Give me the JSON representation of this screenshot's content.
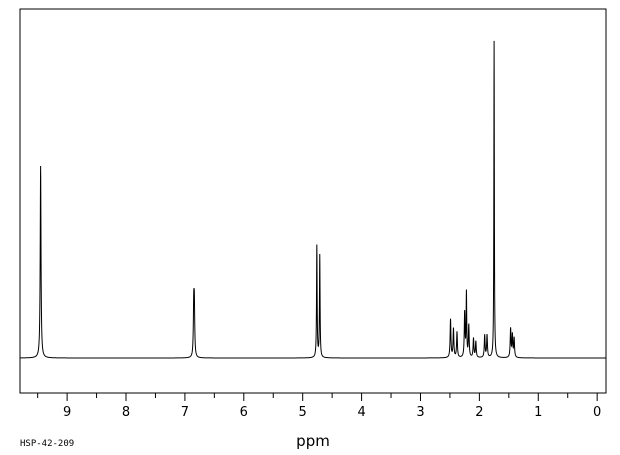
{
  "chart_data": {
    "type": "line",
    "xlabel": "ppm",
    "xlim": [
      9.8,
      -0.15
    ],
    "ylim": [
      0,
      100
    ],
    "x_reversed": true,
    "grid": false,
    "x_ticks": [
      9,
      8,
      7,
      6,
      5,
      4,
      3,
      2,
      1,
      0
    ],
    "x_tick_labels": [
      "9",
      "8",
      "7",
      "6",
      "5",
      "4",
      "3",
      "2",
      "1",
      "0"
    ],
    "baseline": 0,
    "peaks": [
      {
        "ppm": 9.45,
        "height": 60,
        "width": 0.008
      },
      {
        "ppm": 6.85,
        "height": 15,
        "width": 0.008
      },
      {
        "ppm": 6.84,
        "height": 15,
        "width": 0.008
      },
      {
        "ppm": 4.76,
        "height": 35,
        "width": 0.006
      },
      {
        "ppm": 4.71,
        "height": 32,
        "width": 0.006
      },
      {
        "ppm": 2.49,
        "height": 12,
        "width": 0.008
      },
      {
        "ppm": 2.44,
        "height": 9,
        "width": 0.008
      },
      {
        "ppm": 2.38,
        "height": 8,
        "width": 0.008
      },
      {
        "ppm": 2.25,
        "height": 14,
        "width": 0.008
      },
      {
        "ppm": 2.22,
        "height": 20,
        "width": 0.006
      },
      {
        "ppm": 2.18,
        "height": 10,
        "width": 0.008
      },
      {
        "ppm": 2.1,
        "height": 6,
        "width": 0.008
      },
      {
        "ppm": 2.06,
        "height": 5,
        "width": 0.008
      },
      {
        "ppm": 1.91,
        "height": 7,
        "width": 0.008
      },
      {
        "ppm": 1.87,
        "height": 7,
        "width": 0.008
      },
      {
        "ppm": 1.75,
        "height": 99,
        "width": 0.005
      },
      {
        "ppm": 1.47,
        "height": 9,
        "width": 0.008
      },
      {
        "ppm": 1.44,
        "height": 7,
        "width": 0.008
      },
      {
        "ppm": 1.41,
        "height": 6,
        "width": 0.008
      }
    ]
  },
  "figure_code": "HSP-42-209",
  "colors": {
    "line": "#000000",
    "background": "#ffffff"
  }
}
